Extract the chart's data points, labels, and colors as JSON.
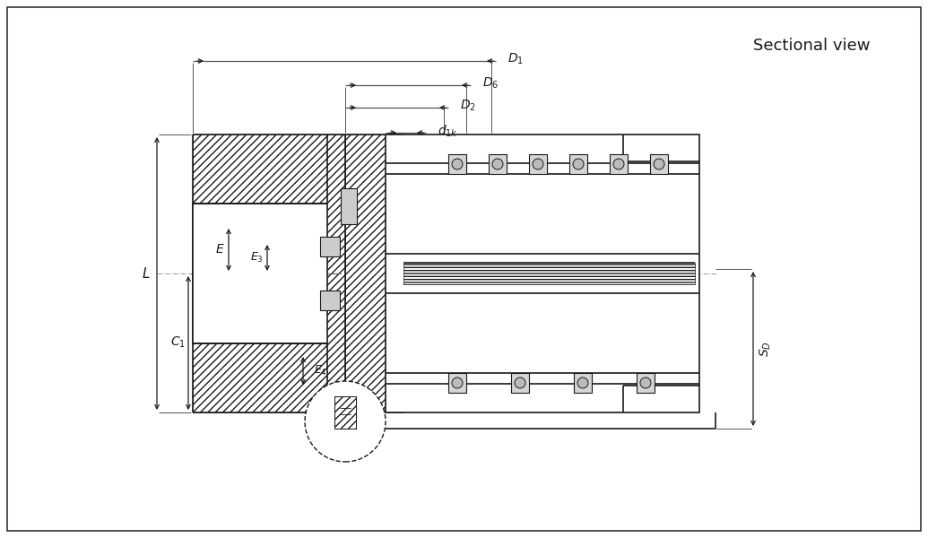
{
  "bg_color": "#ffffff",
  "line_color": "#1a1a1a",
  "title_text": "Sectional view",
  "fig_width": 10.35,
  "fig_height": 6.0
}
